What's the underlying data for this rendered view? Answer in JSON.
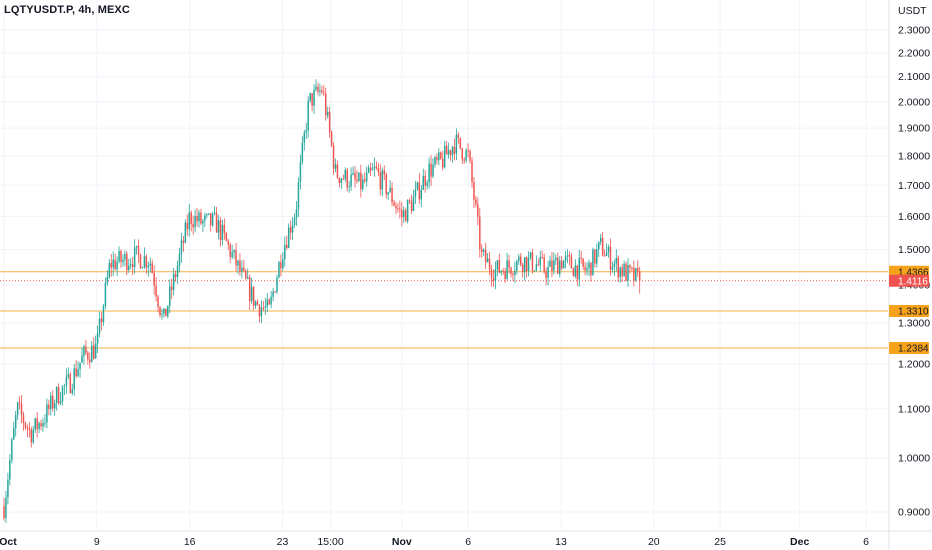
{
  "header": {
    "symbol": "LQTYUSDT.P, 4h, MEXC"
  },
  "price_axis": {
    "currency": "USDT",
    "ticks": [
      "2.3000",
      "2.2000",
      "2.1000",
      "2.0000",
      "1.9000",
      "1.8000",
      "1.7000",
      "1.6000",
      "1.5000",
      "1.4000",
      "1.3000",
      "1.2000",
      "1.1000",
      "1.0000",
      "0.9000"
    ]
  },
  "time_axis": {
    "ticks": [
      "Oct",
      "9",
      "16",
      "23",
      "15:00",
      "Nov",
      "6",
      "13",
      "20",
      "25",
      "Dec",
      "6"
    ]
  },
  "colors": {
    "up": "#26a69a",
    "down": "#ef5350",
    "level_line": "#f7b14a",
    "level_tag": "#f7a21b",
    "last_price_tag": "#ef5350",
    "grid": "#f0f3fa",
    "axis_border": "#e0e3eb"
  },
  "chart_data": {
    "type": "candlestick",
    "title": "LQTYUSDT.P, 4h, MEXC",
    "y_unit": "USDT",
    "ylim": [
      0.86,
      2.33
    ],
    "y_scale": "log",
    "x_range": [
      "2023-10-02",
      "2023-12-08"
    ],
    "last_date": "2023-11-19",
    "candle_interval": "4h",
    "grid": true,
    "horizontal_levels": [
      {
        "price": "1.4366",
        "value": 1.4366
      },
      {
        "price": "1.3310",
        "value": 1.331
      },
      {
        "price": "1.2384",
        "value": 1.2384
      }
    ],
    "last_price": {
      "price": "1.4116",
      "value": 1.4116
    },
    "price_path": [
      [
        "2023-10-02",
        0.91
      ],
      [
        "2023-10-03",
        1.1
      ],
      [
        "2023-10-04",
        1.05
      ],
      [
        "2023-10-05",
        1.08
      ],
      [
        "2023-10-06",
        1.13
      ],
      [
        "2023-10-07",
        1.16
      ],
      [
        "2023-10-08",
        1.22
      ],
      [
        "2023-10-09",
        1.24
      ],
      [
        "2023-10-10",
        1.46
      ],
      [
        "2023-10-11",
        1.47
      ],
      [
        "2023-10-12",
        1.48
      ],
      [
        "2023-10-13",
        1.47
      ],
      [
        "2023-10-14",
        1.3
      ],
      [
        "2023-10-15",
        1.44
      ],
      [
        "2023-10-16",
        1.6
      ],
      [
        "2023-10-17",
        1.58
      ],
      [
        "2023-10-18",
        1.58
      ],
      [
        "2023-10-19",
        1.5
      ],
      [
        "2023-10-20",
        1.42
      ],
      [
        "2023-10-21",
        1.35
      ],
      [
        "2023-10-22",
        1.33
      ],
      [
        "2023-10-23",
        1.5
      ],
      [
        "2023-10-24",
        1.62
      ],
      [
        "2023-10-25",
        2.0
      ],
      [
        "2023-10-26",
        2.05
      ],
      [
        "2023-10-27",
        1.74
      ],
      [
        "2023-10-28",
        1.72
      ],
      [
        "2023-10-29",
        1.7
      ],
      [
        "2023-10-30",
        1.75
      ],
      [
        "2023-10-31",
        1.68
      ],
      [
        "2023-11-01",
        1.6
      ],
      [
        "2023-11-02",
        1.66
      ],
      [
        "2023-11-03",
        1.75
      ],
      [
        "2023-11-04",
        1.78
      ],
      [
        "2023-11-05",
        1.85
      ],
      [
        "2023-11-06",
        1.8
      ],
      [
        "2023-11-07",
        1.48
      ],
      [
        "2023-11-08",
        1.44
      ],
      [
        "2023-11-09",
        1.45
      ],
      [
        "2023-11-10",
        1.47
      ],
      [
        "2023-11-11",
        1.46
      ],
      [
        "2023-11-12",
        1.44
      ],
      [
        "2023-11-13",
        1.47
      ],
      [
        "2023-11-14",
        1.45
      ],
      [
        "2023-11-15",
        1.44
      ],
      [
        "2023-11-16",
        1.51
      ],
      [
        "2023-11-17",
        1.46
      ],
      [
        "2023-11-18",
        1.43
      ],
      [
        "2023-11-19",
        1.4116
      ]
    ]
  }
}
